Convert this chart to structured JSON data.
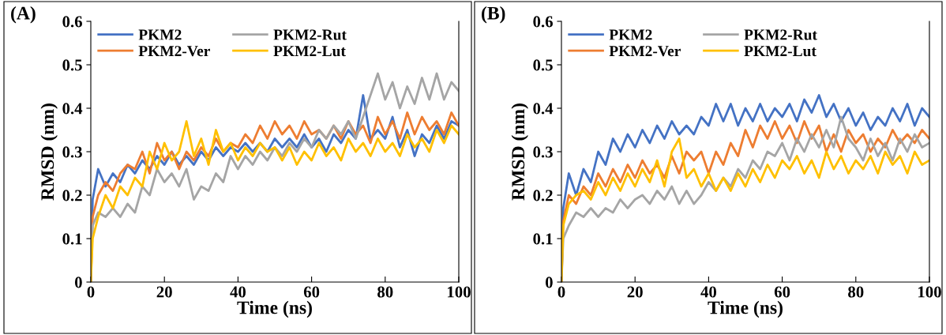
{
  "chart_data": [
    {
      "type": "line",
      "annotations": [
        "(A)"
      ],
      "xlabel": "Time (ns)",
      "ylabel": "RMSD (nm)",
      "xlim": [
        0,
        100
      ],
      "ylim": [
        0,
        0.6
      ],
      "xticks": [
        0,
        20,
        40,
        60,
        80,
        100
      ],
      "yticks": [
        0,
        0.1,
        0.2,
        0.3,
        0.4,
        0.5,
        0.6
      ],
      "grid": false,
      "legend": "top left",
      "marker": "none",
      "line_style": "solid",
      "x": [
        0,
        0.5,
        2,
        4,
        6,
        8,
        10,
        12,
        14,
        16,
        18,
        20,
        22,
        24,
        26,
        28,
        30,
        32,
        34,
        36,
        38,
        40,
        42,
        44,
        46,
        48,
        50,
        52,
        54,
        56,
        58,
        60,
        62,
        64,
        66,
        68,
        70,
        72,
        74,
        76,
        78,
        80,
        82,
        84,
        86,
        88,
        90,
        92,
        94,
        96,
        98,
        100
      ],
      "series": [
        {
          "name": "PKM2",
          "color": "#4472c4",
          "values": [
            0,
            0.19,
            0.26,
            0.22,
            0.25,
            0.23,
            0.27,
            0.25,
            0.28,
            0.26,
            0.29,
            0.27,
            0.3,
            0.27,
            0.29,
            0.27,
            0.3,
            0.28,
            0.31,
            0.29,
            0.31,
            0.3,
            0.32,
            0.3,
            0.32,
            0.3,
            0.33,
            0.31,
            0.33,
            0.31,
            0.34,
            0.31,
            0.33,
            0.3,
            0.34,
            0.32,
            0.35,
            0.33,
            0.43,
            0.33,
            0.35,
            0.33,
            0.38,
            0.31,
            0.35,
            0.29,
            0.34,
            0.32,
            0.36,
            0.33,
            0.37,
            0.36
          ]
        },
        {
          "name": "PKM2-Ver",
          "color": "#ed7d31",
          "values": [
            0,
            0.15,
            0.2,
            0.23,
            0.21,
            0.25,
            0.27,
            0.26,
            0.3,
            0.25,
            0.32,
            0.28,
            0.3,
            0.26,
            0.3,
            0.28,
            0.31,
            0.29,
            0.33,
            0.3,
            0.32,
            0.31,
            0.34,
            0.32,
            0.36,
            0.33,
            0.37,
            0.34,
            0.36,
            0.33,
            0.37,
            0.34,
            0.35,
            0.33,
            0.36,
            0.33,
            0.37,
            0.34,
            0.36,
            0.32,
            0.38,
            0.34,
            0.37,
            0.33,
            0.39,
            0.34,
            0.38,
            0.35,
            0.37,
            0.34,
            0.39,
            0.36
          ]
        },
        {
          "name": "PKM2-Rut",
          "color": "#a5a5a5",
          "values": [
            0,
            0.13,
            0.16,
            0.15,
            0.17,
            0.15,
            0.18,
            0.16,
            0.22,
            0.2,
            0.26,
            0.23,
            0.25,
            0.22,
            0.26,
            0.19,
            0.22,
            0.21,
            0.25,
            0.23,
            0.29,
            0.26,
            0.29,
            0.27,
            0.3,
            0.28,
            0.31,
            0.29,
            0.32,
            0.3,
            0.33,
            0.31,
            0.35,
            0.33,
            0.36,
            0.34,
            0.37,
            0.33,
            0.38,
            0.43,
            0.48,
            0.42,
            0.46,
            0.4,
            0.45,
            0.41,
            0.47,
            0.42,
            0.48,
            0.42,
            0.46,
            0.44
          ]
        },
        {
          "name": "PKM2-Lut",
          "color": "#ffc000",
          "values": [
            0,
            0.1,
            0.15,
            0.2,
            0.17,
            0.22,
            0.2,
            0.24,
            0.22,
            0.3,
            0.26,
            0.32,
            0.28,
            0.3,
            0.37,
            0.29,
            0.33,
            0.27,
            0.35,
            0.3,
            0.32,
            0.28,
            0.31,
            0.29,
            0.32,
            0.3,
            0.31,
            0.28,
            0.31,
            0.27,
            0.3,
            0.28,
            0.32,
            0.29,
            0.31,
            0.28,
            0.33,
            0.3,
            0.32,
            0.29,
            0.33,
            0.3,
            0.32,
            0.29,
            0.34,
            0.31,
            0.33,
            0.3,
            0.35,
            0.32,
            0.36,
            0.34
          ]
        }
      ]
    },
    {
      "type": "line",
      "annotations": [
        "(B)"
      ],
      "xlabel": "Time (ns)",
      "ylabel": "RMSD (nm)",
      "xlim": [
        0,
        100
      ],
      "ylim": [
        0,
        0.6
      ],
      "xticks": [
        0,
        20,
        40,
        60,
        80,
        100
      ],
      "yticks": [
        0,
        0.1,
        0.2,
        0.3,
        0.4,
        0.5,
        0.6
      ],
      "grid": false,
      "legend": "top left",
      "marker": "none",
      "line_style": "solid",
      "x": [
        0,
        0.5,
        2,
        4,
        6,
        8,
        10,
        12,
        14,
        16,
        18,
        20,
        22,
        24,
        26,
        28,
        30,
        32,
        34,
        36,
        38,
        40,
        42,
        44,
        46,
        48,
        50,
        52,
        54,
        56,
        58,
        60,
        62,
        64,
        66,
        68,
        70,
        72,
        74,
        76,
        78,
        80,
        82,
        84,
        86,
        88,
        90,
        92,
        94,
        96,
        98,
        100
      ],
      "series": [
        {
          "name": "PKM2",
          "color": "#4472c4",
          "values": [
            0,
            0.17,
            0.25,
            0.2,
            0.26,
            0.23,
            0.3,
            0.27,
            0.33,
            0.3,
            0.34,
            0.31,
            0.35,
            0.32,
            0.36,
            0.33,
            0.37,
            0.34,
            0.36,
            0.34,
            0.38,
            0.36,
            0.41,
            0.37,
            0.41,
            0.36,
            0.4,
            0.37,
            0.41,
            0.37,
            0.4,
            0.38,
            0.41,
            0.37,
            0.42,
            0.39,
            0.43,
            0.38,
            0.41,
            0.37,
            0.4,
            0.36,
            0.39,
            0.35,
            0.38,
            0.36,
            0.4,
            0.37,
            0.41,
            0.36,
            0.4,
            0.38
          ]
        },
        {
          "name": "PKM2-Ver",
          "color": "#ed7d31",
          "values": [
            0,
            0.14,
            0.2,
            0.18,
            0.22,
            0.2,
            0.25,
            0.22,
            0.26,
            0.23,
            0.27,
            0.24,
            0.28,
            0.25,
            0.27,
            0.24,
            0.29,
            0.25,
            0.3,
            0.28,
            0.3,
            0.25,
            0.3,
            0.27,
            0.32,
            0.29,
            0.35,
            0.31,
            0.36,
            0.33,
            0.37,
            0.33,
            0.36,
            0.32,
            0.37,
            0.33,
            0.36,
            0.3,
            0.34,
            0.3,
            0.35,
            0.32,
            0.34,
            0.3,
            0.33,
            0.31,
            0.35,
            0.32,
            0.34,
            0.32,
            0.35,
            0.33
          ]
        },
        {
          "name": "PKM2-Rut",
          "color": "#a5a5a5",
          "values": [
            0,
            0.1,
            0.13,
            0.16,
            0.15,
            0.17,
            0.15,
            0.17,
            0.16,
            0.19,
            0.17,
            0.19,
            0.2,
            0.18,
            0.21,
            0.19,
            0.22,
            0.18,
            0.21,
            0.18,
            0.2,
            0.23,
            0.21,
            0.24,
            0.22,
            0.26,
            0.24,
            0.28,
            0.26,
            0.3,
            0.29,
            0.32,
            0.28,
            0.33,
            0.3,
            0.34,
            0.31,
            0.35,
            0.31,
            0.38,
            0.33,
            0.31,
            0.28,
            0.33,
            0.29,
            0.32,
            0.28,
            0.33,
            0.3,
            0.34,
            0.31,
            0.32
          ]
        },
        {
          "name": "PKM2-Lut",
          "color": "#ffc000",
          "values": [
            0,
            0.13,
            0.18,
            0.2,
            0.21,
            0.19,
            0.23,
            0.2,
            0.24,
            0.21,
            0.25,
            0.22,
            0.26,
            0.23,
            0.28,
            0.22,
            0.3,
            0.33,
            0.24,
            0.26,
            0.22,
            0.25,
            0.21,
            0.24,
            0.21,
            0.25,
            0.22,
            0.26,
            0.23,
            0.27,
            0.24,
            0.28,
            0.26,
            0.29,
            0.25,
            0.28,
            0.24,
            0.3,
            0.26,
            0.29,
            0.25,
            0.28,
            0.26,
            0.29,
            0.25,
            0.3,
            0.27,
            0.29,
            0.25,
            0.3,
            0.27,
            0.28
          ]
        }
      ]
    }
  ]
}
